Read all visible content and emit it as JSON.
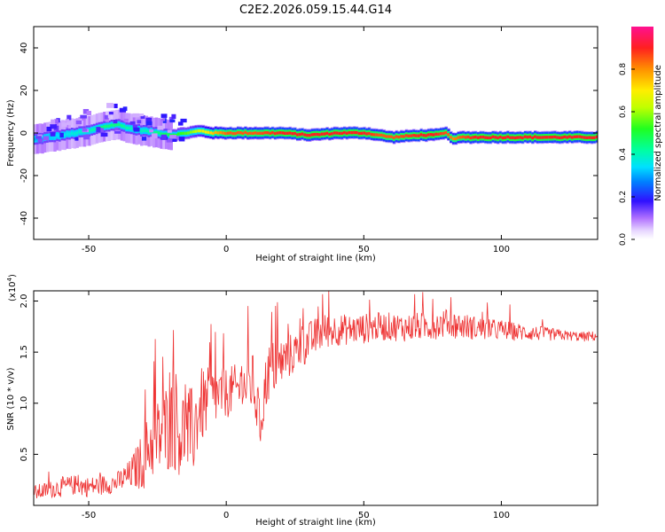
{
  "title": "C2E2.2026.059.15.44.G14",
  "colors": {
    "snr_line": "#ee3333",
    "axis": "#000000"
  },
  "chart_data": [
    {
      "type": "heatmap",
      "name": "spectrogram",
      "xlabel": "Height of straight line (km)",
      "ylabel": "Frequency (Hz)",
      "xlim": [
        -70,
        135
      ],
      "ylim": [
        -50,
        50
      ],
      "xticks": [
        -50,
        0,
        50,
        100
      ],
      "xtick_labels": [
        "-50",
        "0",
        "50",
        "100"
      ],
      "yticks": [
        -40,
        -20,
        0,
        20,
        40
      ],
      "ytick_labels": [
        "-40",
        "-20",
        "0",
        "20",
        "40"
      ],
      "ridge": {
        "x": [
          -70,
          -60,
          -50,
          -45,
          -40,
          -35,
          -30,
          -25,
          -20,
          -15,
          -10,
          -5,
          0,
          10,
          20,
          30,
          40,
          50,
          55,
          60,
          70,
          75,
          80,
          82,
          85,
          90,
          100,
          110,
          120,
          135
        ],
        "freq": [
          -3,
          -1,
          1,
          3,
          4,
          2,
          1,
          0,
          -1,
          0,
          1,
          0,
          0,
          0,
          0,
          -1,
          0,
          0,
          -1,
          -2,
          -1,
          -1,
          0,
          -3,
          -2,
          -2,
          -2,
          -2,
          -2,
          -2
        ],
        "amplitude": [
          0.3,
          0.35,
          0.4,
          0.45,
          0.45,
          0.4,
          0.4,
          0.45,
          0.5,
          0.55,
          0.65,
          0.75,
          0.85,
          0.85,
          0.9,
          0.9,
          0.9,
          0.9,
          0.85,
          0.85,
          0.9,
          0.9,
          0.85,
          0.8,
          0.85,
          0.9,
          0.9,
          0.9,
          0.9,
          0.9
        ]
      },
      "colorbar": {
        "label": "Normalized spectral amplitude",
        "range": [
          0,
          1
        ],
        "ticks": [
          0.0,
          0.2,
          0.4,
          0.6,
          0.8
        ],
        "tick_labels": [
          "0.0",
          "0.2",
          "0.4",
          "0.6",
          "0.8"
        ]
      }
    },
    {
      "type": "line",
      "name": "snr",
      "xlabel": "Height of straight line (km)",
      "ylabel": "SNR (10 * v/v)",
      "y_multiplier": "(x10",
      "y_multiplier_exp": "4",
      "y_multiplier_close": ")",
      "xlim": [
        -70,
        135
      ],
      "ylim": [
        0,
        2.1
      ],
      "xticks": [
        -50,
        0,
        50,
        100
      ],
      "xtick_labels": [
        "-50",
        "0",
        "50",
        "100"
      ],
      "yticks": [
        0.5,
        1.0,
        1.5,
        2.0
      ],
      "ytick_labels": [
        "0.5",
        "1.0",
        "1.5",
        "2.0"
      ],
      "series": [
        {
          "name": "SNR",
          "color": "#ee3333",
          "x": [
            -70,
            -65,
            -60,
            -55,
            -50,
            -45,
            -40,
            -35,
            -30,
            -28,
            -25,
            -22,
            -20,
            -18,
            -15,
            -12,
            -10,
            -5,
            0,
            5,
            10,
            12,
            15,
            20,
            25,
            30,
            35,
            40,
            45,
            50,
            55,
            60,
            65,
            70,
            75,
            80,
            85,
            90,
            95,
            100,
            105,
            110,
            115,
            120,
            125,
            130,
            135
          ],
          "y": [
            0.12,
            0.15,
            0.18,
            0.2,
            0.18,
            0.2,
            0.22,
            0.3,
            0.45,
            0.6,
            0.65,
            0.75,
            0.8,
            0.75,
            0.7,
            0.72,
            0.95,
            1.05,
            1.1,
            1.15,
            1.2,
            0.75,
            1.3,
            1.4,
            1.5,
            1.6,
            1.7,
            1.72,
            1.72,
            1.73,
            1.75,
            1.75,
            1.74,
            1.75,
            1.76,
            1.78,
            1.76,
            1.74,
            1.72,
            1.72,
            1.7,
            1.69,
            1.68,
            1.67,
            1.66,
            1.65,
            1.66
          ],
          "noise": [
            0.08,
            0.08,
            0.1,
            0.1,
            0.1,
            0.1,
            0.1,
            0.15,
            0.3,
            0.35,
            0.4,
            0.45,
            0.45,
            0.45,
            0.45,
            0.45,
            0.4,
            0.3,
            0.25,
            0.25,
            0.3,
            0.3,
            0.3,
            0.25,
            0.2,
            0.2,
            0.18,
            0.16,
            0.15,
            0.15,
            0.14,
            0.14,
            0.14,
            0.14,
            0.14,
            0.14,
            0.13,
            0.12,
            0.11,
            0.1,
            0.09,
            0.08,
            0.07,
            0.06,
            0.05,
            0.05,
            0.05
          ]
        }
      ]
    }
  ]
}
